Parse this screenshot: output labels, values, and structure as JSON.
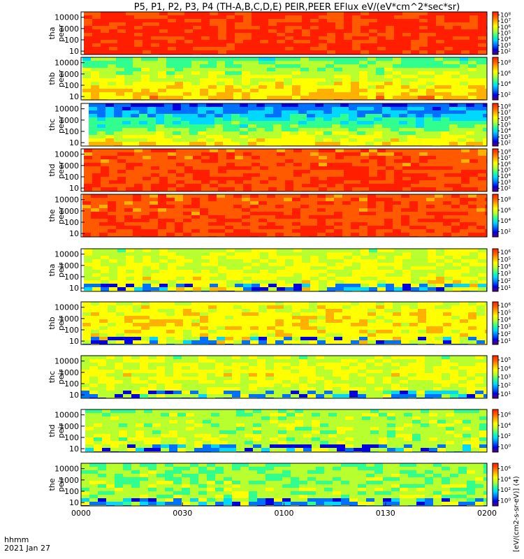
{
  "title": "P5, P1, P2, P3, P4 (TH-A,B,C,D,E) PEIR,PEER EFlux eV/(eV*cm^2*sec*sr)",
  "colors": {
    "ramp": [
      "#5a007a",
      "#0000e0",
      "#0070ff",
      "#00d8ff",
      "#30ff90",
      "#b8ff30",
      "#ffff00",
      "#ffb000",
      "#ff5a00",
      "#ff1e00"
    ]
  },
  "x_footer": {
    "format_label": "hhmm",
    "date_label": "2021 Jan 27"
  },
  "colorbar_unit": "[eV/(cm2-s-sr-eV)] (4)",
  "chart_data": {
    "type": "heatmap",
    "x_axis": {
      "range": [
        "0000",
        "0200"
      ],
      "ticks": [
        "0000",
        "0030",
        "0100",
        "0130",
        "0200"
      ]
    },
    "y_axis": {
      "scale": "log",
      "range": [
        5,
        30000
      ],
      "ticks": [
        "10",
        "100",
        "1000",
        "10000"
      ]
    },
    "panels": [
      {
        "probe": "tha",
        "species": "peer",
        "cb_ticks": [
          "10²",
          "10³",
          "10⁴",
          "10⁵",
          "10⁶",
          "10⁷",
          "10⁸"
        ]
      },
      {
        "probe": "thb",
        "species": "peer",
        "cb_ticks": [
          "10²",
          "10⁴",
          "10⁶",
          "10⁸"
        ]
      },
      {
        "probe": "thc",
        "species": "peer",
        "cb_ticks": [
          "10²",
          "10³",
          "10⁴",
          "10⁵",
          "10⁶",
          "10⁷",
          "10⁸"
        ]
      },
      {
        "probe": "thd",
        "species": "peer",
        "cb_ticks": [
          "10²",
          "10³",
          "10⁴",
          "10⁵",
          "10⁶",
          "10⁷",
          "10⁸"
        ]
      },
      {
        "probe": "the",
        "species": "peer",
        "cb_ticks": [
          "10²",
          "10⁴",
          "10⁶",
          "10⁸"
        ]
      },
      {
        "probe": "tha",
        "species": "peir",
        "cb_ticks": [
          "10¹",
          "10²",
          "10³",
          "10⁴",
          "10⁵",
          "10⁶"
        ]
      },
      {
        "probe": "thb",
        "species": "peir",
        "cb_ticks": [
          "10¹",
          "10²",
          "10³",
          "10⁴",
          "10⁵",
          "10⁶"
        ]
      },
      {
        "probe": "thc",
        "species": "peir",
        "cb_ticks": [
          "10¹",
          "10²",
          "10³",
          "10⁴",
          "10⁵"
        ]
      },
      {
        "probe": "thd",
        "species": "peir",
        "cb_ticks": [
          "10⁰",
          "10²",
          "10⁴",
          "10⁶"
        ]
      },
      {
        "probe": "the",
        "species": "peir",
        "cb_ticks": [
          "10⁰",
          "10²",
          "10⁴",
          "10⁶"
        ]
      }
    ]
  }
}
